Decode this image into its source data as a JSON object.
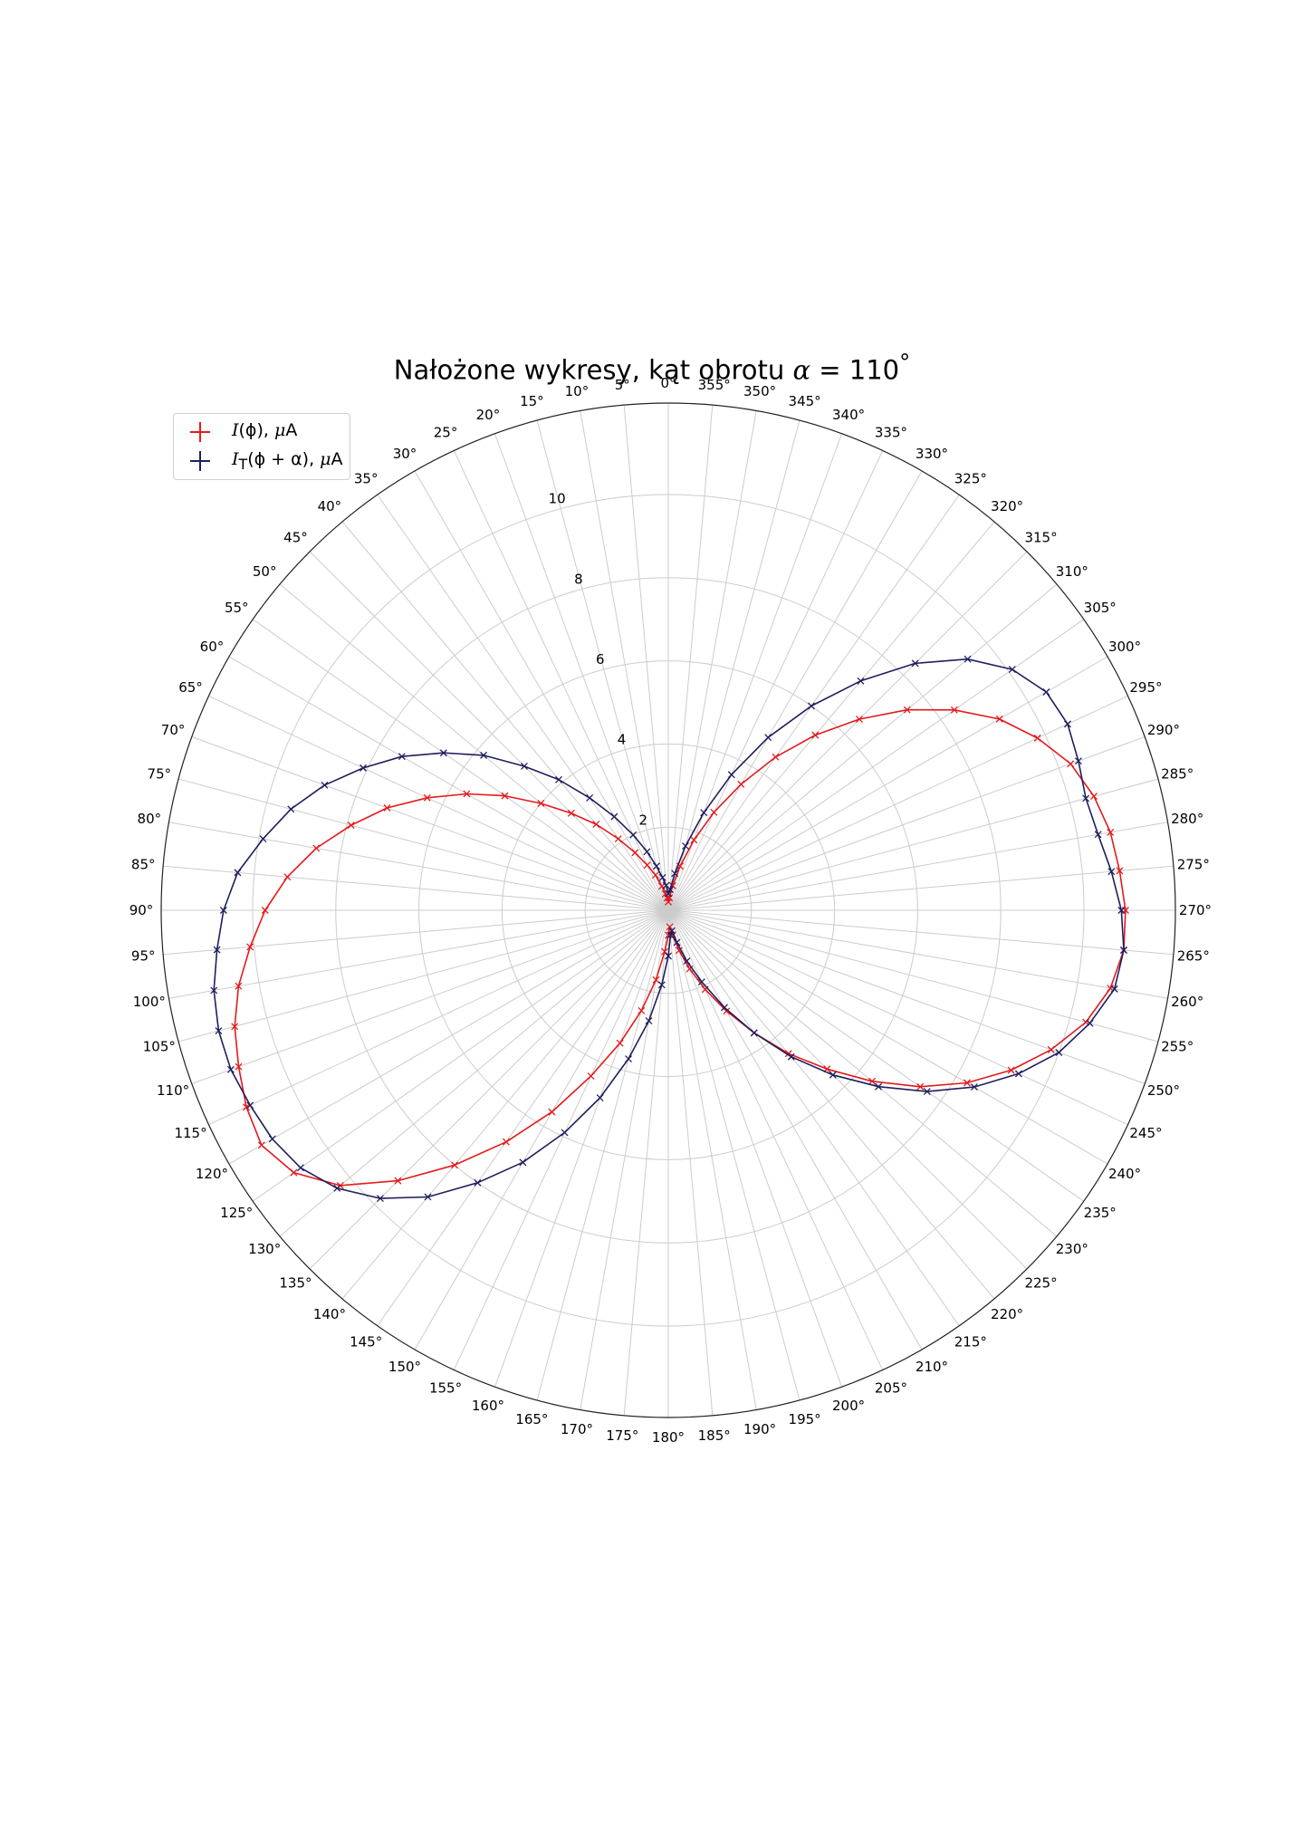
{
  "chart_data": {
    "type": "polar-line",
    "title": "Nałożone wykresy, kąt obrotu α = 110°",
    "title_parts": {
      "prefix": "Nałożone wykresy, kąt obrotu ",
      "var": "α",
      "eq": " = 110",
      "deg": "°"
    },
    "theta_zero": "top",
    "theta_direction": "counterclockwise",
    "theta_ticks_deg": [
      0,
      5,
      10,
      15,
      20,
      25,
      30,
      35,
      40,
      45,
      50,
      55,
      60,
      65,
      70,
      75,
      80,
      85,
      90,
      95,
      100,
      105,
      110,
      115,
      120,
      125,
      130,
      135,
      140,
      145,
      150,
      155,
      160,
      165,
      170,
      175,
      180,
      185,
      190,
      195,
      200,
      205,
      210,
      215,
      220,
      225,
      230,
      235,
      240,
      245,
      250,
      255,
      260,
      265,
      270,
      275,
      280,
      285,
      290,
      295,
      300,
      305,
      310,
      315,
      320,
      325,
      330,
      335,
      340,
      345,
      350,
      355
    ],
    "theta_tick_labels": [
      "0°",
      "5°",
      "10°",
      "15°",
      "20°",
      "25°",
      "30°",
      "35°",
      "40°",
      "45°",
      "50°",
      "55°",
      "60°",
      "65°",
      "70°",
      "75°",
      "80°",
      "85°",
      "90°",
      "95°",
      "100°",
      "105°",
      "110°",
      "115°",
      "120°",
      "125°",
      "130°",
      "135°",
      "140°",
      "145°",
      "150°",
      "155°",
      "160°",
      "165°",
      "170°",
      "175°",
      "180°",
      "185°",
      "190°",
      "195°",
      "200°",
      "205°",
      "210°",
      "215°",
      "220°",
      "225°",
      "230°",
      "235°",
      "240°",
      "245°",
      "250°",
      "255°",
      "260°",
      "265°",
      "270°",
      "275°",
      "280°",
      "285°",
      "290°",
      "295°",
      "300°",
      "305°",
      "310°",
      "315°",
      "320°",
      "325°",
      "330°",
      "335°",
      "340°",
      "345°",
      "350°",
      "355°"
    ],
    "r_ticks": [
      2,
      4,
      6,
      8,
      10
    ],
    "r_tick_labels": [
      "2",
      "4",
      "6",
      "8",
      "10"
    ],
    "rlim": [
      0,
      12.2
    ],
    "r_label_angle_deg": 15,
    "grid": true,
    "legend_position": "top-left",
    "series": [
      {
        "name_parts": {
          "var": "I",
          "sub": "",
          "arg": "(ϕ), ",
          "unit_var": "μ",
          "unit": "A"
        },
        "color": "#e41a1c",
        "marker": "x",
        "theta_deg": [
          0,
          5,
          10,
          15,
          20,
          25,
          30,
          35,
          40,
          45,
          50,
          55,
          60,
          65,
          70,
          75,
          80,
          85,
          90,
          95,
          100,
          105,
          110,
          115,
          120,
          125,
          130,
          135,
          140,
          145,
          150,
          155,
          160,
          165,
          170,
          175,
          180,
          185,
          190,
          195,
          200,
          205,
          210,
          215,
          220,
          225,
          230,
          235,
          240,
          245,
          250,
          255,
          260,
          265,
          270,
          275,
          280,
          285,
          290,
          295,
          300,
          305,
          310,
          315,
          320,
          325,
          330,
          335,
          340,
          345,
          350,
          355
        ],
        "r": [
          0.2,
          0.3,
          0.4,
          0.6,
          0.9,
          1.2,
          1.6,
          2.1,
          2.7,
          3.3,
          4.0,
          4.8,
          5.6,
          6.4,
          7.2,
          7.9,
          8.6,
          9.2,
          9.7,
          10.1,
          10.5,
          10.8,
          11.0,
          11.2,
          11.3,
          11.0,
          10.3,
          9.2,
          8.0,
          6.8,
          5.6,
          4.4,
          3.4,
          2.5,
          1.7,
          1.0,
          0.6,
          0.4,
          0.6,
          1.0,
          1.5,
          2.1,
          2.8,
          3.6,
          4.5,
          5.4,
          6.4,
          7.4,
          8.3,
          9.1,
          9.8,
          10.4,
          10.8,
          11.0,
          11.0,
          10.9,
          10.8,
          10.6,
          10.3,
          9.8,
          9.2,
          8.4,
          7.5,
          6.5,
          5.5,
          4.5,
          3.5,
          2.6,
          1.8,
          1.1,
          0.6,
          0.3
        ]
      },
      {
        "name_parts": {
          "var": "I",
          "sub": "T",
          "arg": "(ϕ + α), ",
          "unit_var": "μ",
          "unit": "A"
        },
        "color": "#1f1f5e",
        "marker": "x",
        "theta_deg": [
          0,
          5,
          10,
          15,
          20,
          25,
          30,
          35,
          40,
          45,
          50,
          55,
          60,
          65,
          70,
          75,
          80,
          85,
          90,
          95,
          100,
          105,
          110,
          115,
          120,
          125,
          130,
          135,
          140,
          145,
          150,
          155,
          160,
          165,
          170,
          175,
          180,
          185,
          190,
          195,
          200,
          205,
          210,
          215,
          220,
          225,
          230,
          235,
          240,
          245,
          250,
          255,
          260,
          265,
          270,
          275,
          280,
          285,
          290,
          295,
          300,
          305,
          310,
          315,
          320,
          325,
          330,
          335,
          340,
          345,
          350,
          355
        ],
        "r": [
          0.4,
          0.6,
          0.8,
          1.1,
          1.5,
          2.0,
          2.6,
          3.3,
          4.1,
          4.9,
          5.8,
          6.6,
          7.4,
          8.1,
          8.8,
          9.4,
          9.9,
          10.4,
          10.7,
          10.9,
          11.1,
          11.2,
          11.2,
          11.1,
          11.0,
          10.8,
          10.4,
          9.8,
          9.0,
          8.0,
          7.0,
          5.9,
          4.8,
          3.7,
          2.7,
          1.8,
          1.1,
          0.6,
          0.5,
          0.8,
          1.3,
          1.9,
          2.7,
          3.6,
          4.6,
          5.6,
          6.6,
          7.6,
          8.5,
          9.3,
          10.0,
          10.5,
          10.9,
          11.0,
          10.9,
          10.7,
          10.5,
          10.4,
          10.5,
          10.6,
          10.5,
          10.1,
          9.4,
          8.4,
          7.2,
          6.0,
          4.8,
          3.6,
          2.5,
          1.6,
          0.9,
          0.5
        ]
      }
    ]
  }
}
